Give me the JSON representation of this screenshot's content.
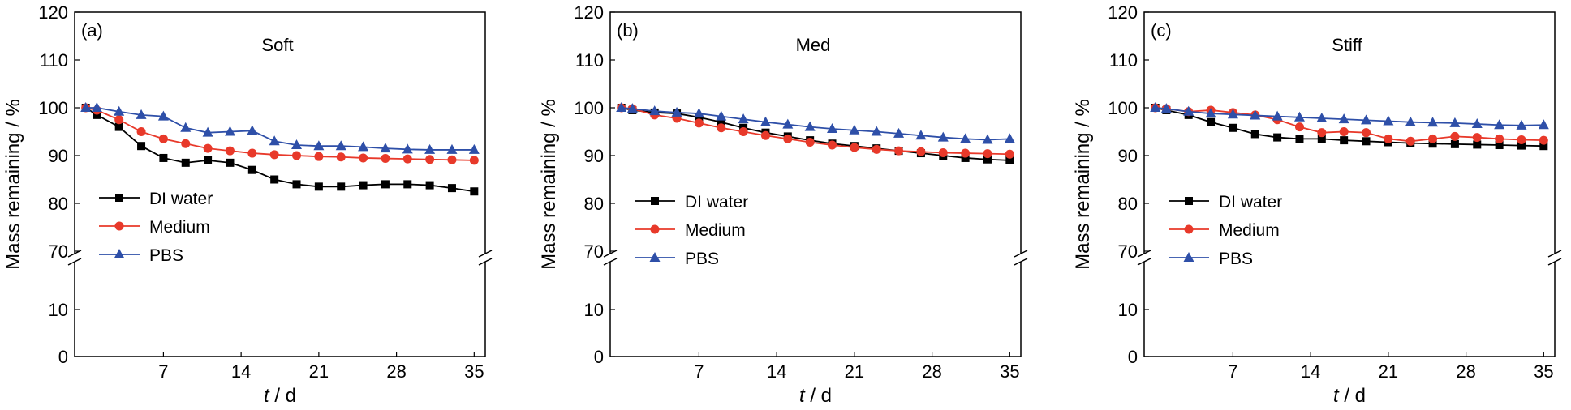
{
  "chart_data": [
    {
      "type": "line",
      "panel_label": "(a)",
      "title": "Soft",
      "xlabel_italic": "t",
      "xlabel_unit": " / d",
      "ylabel": "Mass remaining / %",
      "xlim": [
        -1,
        36
      ],
      "xticks": [
        "7",
        "14",
        "21",
        "28",
        "35"
      ],
      "yticks_lower": [
        "0",
        "10"
      ],
      "yticks_upper": [
        "70",
        "80",
        "90",
        "100",
        "110",
        "120"
      ],
      "ylim_lower": [
        0,
        15
      ],
      "ylim_upper": [
        70,
        120
      ],
      "axis_break": true,
      "grid": false,
      "legend_position": "lower-left",
      "x": [
        0,
        1,
        3,
        5,
        7,
        9,
        11,
        13,
        15,
        17,
        19,
        21,
        23,
        25,
        27,
        29,
        31,
        33,
        35
      ],
      "series": [
        {
          "name": "DI water",
          "color": "#000000",
          "marker": "square",
          "values": [
            100,
            98.5,
            96,
            92,
            89.5,
            88.5,
            89,
            88.5,
            87,
            85,
            84,
            83.5,
            83.5,
            83.8,
            84,
            84,
            83.8,
            83.2,
            82.5
          ]
        },
        {
          "name": "Medium",
          "color": "#e8392a",
          "marker": "circle",
          "values": [
            100,
            99.5,
            97.5,
            95,
            93.5,
            92.5,
            91.5,
            91,
            90.5,
            90.2,
            90,
            89.8,
            89.7,
            89.5,
            89.4,
            89.3,
            89.2,
            89.1,
            89
          ]
        },
        {
          "name": "PBS",
          "color": "#2e4fa8",
          "marker": "triangle",
          "values": [
            100,
            100,
            99.2,
            98.5,
            98.2,
            95.8,
            94.8,
            95,
            95.2,
            93,
            92.2,
            92,
            92,
            91.8,
            91.5,
            91.3,
            91.2,
            91.2,
            91.2
          ]
        }
      ]
    },
    {
      "type": "line",
      "panel_label": "(b)",
      "title": "Med",
      "xlabel_italic": "t",
      "xlabel_unit": " / d",
      "ylabel": "Mass remaining / %",
      "xlim": [
        -1,
        36
      ],
      "xticks": [
        "7",
        "14",
        "21",
        "28",
        "35"
      ],
      "yticks_lower": [
        "0",
        "10"
      ],
      "yticks_upper": [
        "70",
        "80",
        "90",
        "100",
        "110",
        "120"
      ],
      "ylim_lower": [
        0,
        15
      ],
      "ylim_upper": [
        70,
        120
      ],
      "axis_break": true,
      "grid": false,
      "legend_position": "lower-left",
      "x": [
        0,
        1,
        3,
        5,
        7,
        9,
        11,
        13,
        15,
        17,
        19,
        21,
        23,
        25,
        27,
        29,
        31,
        33,
        35
      ],
      "series": [
        {
          "name": "DI water",
          "color": "#000000",
          "marker": "square",
          "values": [
            100,
            99.5,
            99,
            98.8,
            98,
            97,
            95.8,
            94.8,
            94,
            93.2,
            92.5,
            92,
            91.5,
            91,
            90.5,
            90,
            89.5,
            89.2,
            89
          ]
        },
        {
          "name": "Medium",
          "color": "#e8392a",
          "marker": "circle",
          "values": [
            100,
            99.8,
            98.5,
            97.8,
            96.8,
            95.8,
            95,
            94.2,
            93.5,
            92.8,
            92.2,
            91.7,
            91.3,
            91,
            90.8,
            90.6,
            90.5,
            90.4,
            90.3
          ]
        },
        {
          "name": "PBS",
          "color": "#2e4fa8",
          "marker": "triangle",
          "values": [
            100,
            99.8,
            99.3,
            99,
            98.8,
            98.2,
            97.6,
            97,
            96.5,
            96,
            95.6,
            95.3,
            95,
            94.6,
            94.2,
            93.8,
            93.5,
            93.3,
            93.5
          ]
        }
      ]
    },
    {
      "type": "line",
      "panel_label": "(c)",
      "title": "Stiff",
      "xlabel_italic": "t",
      "xlabel_unit": " / d",
      "ylabel": "Mass remaining / %",
      "xlim": [
        -1,
        36
      ],
      "xticks": [
        "7",
        "14",
        "21",
        "28",
        "35"
      ],
      "yticks_lower": [
        "0",
        "10"
      ],
      "yticks_upper": [
        "70",
        "80",
        "90",
        "100",
        "110",
        "120"
      ],
      "ylim_lower": [
        0,
        15
      ],
      "ylim_upper": [
        70,
        120
      ],
      "axis_break": true,
      "grid": false,
      "legend_position": "lower-left",
      "x": [
        0,
        1,
        3,
        5,
        7,
        9,
        11,
        13,
        15,
        17,
        19,
        21,
        23,
        25,
        27,
        29,
        31,
        33,
        35
      ],
      "series": [
        {
          "name": "DI water",
          "color": "#000000",
          "marker": "square",
          "values": [
            100,
            99.5,
            98.5,
            97,
            95.8,
            94.5,
            93.8,
            93.5,
            93.5,
            93.2,
            93,
            92.8,
            92.6,
            92.5,
            92.4,
            92.3,
            92.2,
            92.1,
            92
          ]
        },
        {
          "name": "Medium",
          "color": "#e8392a",
          "marker": "circle",
          "values": [
            100,
            99.8,
            99.2,
            99.5,
            99,
            98.5,
            97.5,
            96,
            94.8,
            95,
            94.8,
            93.5,
            93,
            93.5,
            94,
            93.8,
            93.5,
            93.3,
            93.2
          ]
        },
        {
          "name": "PBS",
          "color": "#2e4fa8",
          "marker": "triangle",
          "values": [
            100,
            99.8,
            99.2,
            98.8,
            98.6,
            98.4,
            98.2,
            98,
            97.8,
            97.6,
            97.4,
            97.2,
            97,
            96.9,
            96.8,
            96.6,
            96.4,
            96.3,
            96.4
          ]
        }
      ]
    }
  ]
}
